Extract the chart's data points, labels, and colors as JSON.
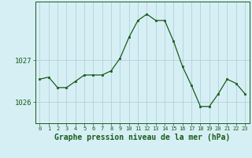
{
  "x": [
    0,
    1,
    2,
    3,
    4,
    5,
    6,
    7,
    8,
    9,
    10,
    11,
    12,
    13,
    14,
    15,
    16,
    17,
    18,
    19,
    20,
    21,
    22,
    23
  ],
  "y": [
    1026.55,
    1026.6,
    1026.35,
    1026.35,
    1026.5,
    1026.65,
    1026.65,
    1026.65,
    1026.75,
    1027.05,
    1027.55,
    1027.95,
    1028.1,
    1027.95,
    1027.95,
    1027.45,
    1026.85,
    1026.4,
    1025.9,
    1025.9,
    1026.2,
    1026.55,
    1026.45,
    1026.2
  ],
  "ylim": [
    1025.5,
    1028.4
  ],
  "yticks": [
    1026,
    1027
  ],
  "xlabel": "Graphe pression niveau de la mer (hPa)",
  "xtick_labels": [
    "0",
    "1",
    "2",
    "3",
    "4",
    "5",
    "6",
    "7",
    "8",
    "9",
    "10",
    "11",
    "12",
    "13",
    "14",
    "15",
    "16",
    "17",
    "18",
    "19",
    "20",
    "21",
    "22",
    "23"
  ],
  "line_color": "#1a5c1a",
  "marker_color": "#1a5c1a",
  "bg_color": "#d6eff5",
  "grid_color": "#aaccd4",
  "xlabel_fontsize": 7.0,
  "ytick_fontsize": 6.5,
  "xtick_fontsize": 5.0
}
